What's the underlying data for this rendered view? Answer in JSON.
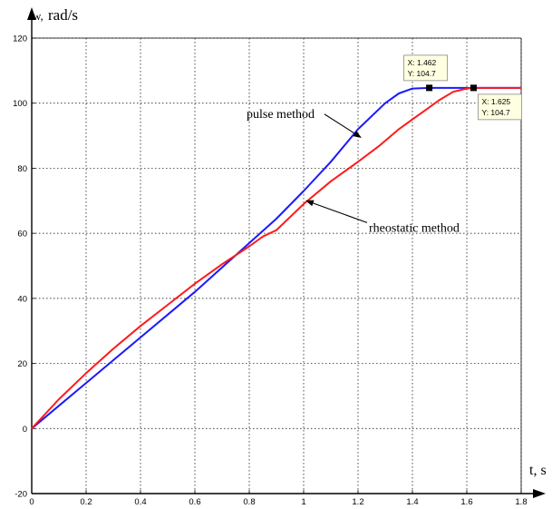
{
  "chart_data": {
    "type": "line",
    "xlabel": "t, s",
    "ylabel_prefix": "w,",
    "ylabel_unit": "rad/s",
    "xlim": [
      0,
      1.8
    ],
    "ylim": [
      -20,
      120
    ],
    "x_ticks": [
      "0",
      "0.2",
      "0.4",
      "0.6",
      "0.8",
      "1",
      "1.2",
      "1.4",
      "1.6",
      "1.8"
    ],
    "y_ticks": [
      "-20",
      "0",
      "20",
      "40",
      "60",
      "80",
      "100",
      "120"
    ],
    "x_tick_values": [
      0,
      0.2,
      0.4,
      0.6,
      0.8,
      1.0,
      1.2,
      1.4,
      1.6,
      1.8
    ],
    "y_tick_values": [
      -20,
      0,
      20,
      40,
      60,
      80,
      100,
      120
    ],
    "grid": true,
    "series": [
      {
        "name": "pulse method",
        "color": "#1a1aff",
        "points": [
          [
            0,
            0
          ],
          [
            0.1,
            7
          ],
          [
            0.2,
            14
          ],
          [
            0.3,
            21
          ],
          [
            0.4,
            28
          ],
          [
            0.5,
            35
          ],
          [
            0.6,
            42
          ],
          [
            0.7,
            49.5
          ],
          [
            0.8,
            57
          ],
          [
            0.9,
            64.5
          ],
          [
            1.0,
            73
          ],
          [
            1.1,
            82
          ],
          [
            1.2,
            92
          ],
          [
            1.3,
            100
          ],
          [
            1.35,
            103
          ],
          [
            1.4,
            104.5
          ],
          [
            1.462,
            104.7
          ],
          [
            1.5,
            104.7
          ],
          [
            1.8,
            104.7
          ]
        ]
      },
      {
        "name": "rheostatic method",
        "color": "#ff1a1a",
        "points": [
          [
            0,
            0
          ],
          [
            0.1,
            9
          ],
          [
            0.2,
            17
          ],
          [
            0.3,
            24.5
          ],
          [
            0.4,
            31.5
          ],
          [
            0.5,
            38
          ],
          [
            0.6,
            44.5
          ],
          [
            0.7,
            50.5
          ],
          [
            0.8,
            56
          ],
          [
            0.85,
            59
          ],
          [
            0.9,
            61
          ],
          [
            1.0,
            69
          ],
          [
            1.1,
            76
          ],
          [
            1.2,
            82
          ],
          [
            1.28,
            87
          ],
          [
            1.35,
            92
          ],
          [
            1.4,
            95
          ],
          [
            1.45,
            98
          ],
          [
            1.5,
            101
          ],
          [
            1.55,
            103.5
          ],
          [
            1.6,
            104.5
          ],
          [
            1.625,
            104.7
          ],
          [
            1.8,
            104.7
          ]
        ]
      }
    ],
    "annotations": [
      {
        "text": "pulse method",
        "text_at": [
          0.79,
          95.5
        ],
        "arrow_to": [
          1.21,
          89.5
        ]
      },
      {
        "text": "rheostatic method",
        "text_at": [
          1.24,
          60.5
        ],
        "arrow_to": [
          1.01,
          70
        ]
      }
    ],
    "datatips": [
      {
        "x": 1.462,
        "y": 104.7,
        "x_text": "X: 1.462",
        "y_text": "Y: 104.7",
        "placement": "above"
      },
      {
        "x": 1.625,
        "y": 104.7,
        "x_text": "X: 1.625",
        "y_text": "Y: 104.7",
        "placement": "below-right"
      }
    ]
  }
}
